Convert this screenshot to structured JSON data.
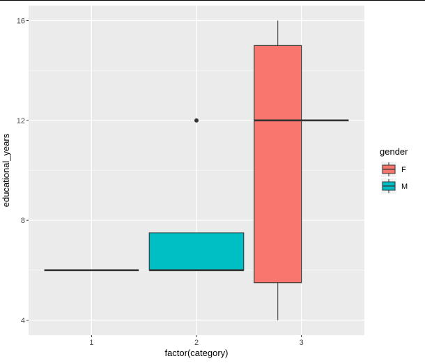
{
  "chart_data": {
    "type": "boxplot",
    "xlabel": "factor(category)",
    "ylabel": "educational_years",
    "categories": [
      "1",
      "2",
      "3"
    ],
    "ylim": [
      3.4,
      16.6
    ],
    "yticks": [
      4,
      8,
      12,
      16
    ],
    "grid": true,
    "legend": {
      "title": "gender",
      "placement": "right",
      "entries": [
        {
          "label": "F",
          "color": "#F8766D"
        },
        {
          "label": "M",
          "color": "#00BFC4"
        }
      ]
    },
    "boxes": [
      {
        "category": "1",
        "group": "M",
        "slot": 0,
        "slots": 1,
        "min": 6,
        "q1": 6,
        "median": 6,
        "q3": 6,
        "max": 6,
        "outliers": []
      },
      {
        "category": "2",
        "group": "M",
        "slot": 0,
        "slots": 1,
        "min": 6,
        "q1": 6,
        "median": 6,
        "q3": 7.5,
        "max": 7.5,
        "outliers": [
          12
        ]
      },
      {
        "category": "3",
        "group": "F",
        "slot": 0,
        "slots": 2,
        "min": 4,
        "q1": 5.5,
        "median": 12,
        "q3": 15,
        "max": 16,
        "outliers": []
      },
      {
        "category": "3",
        "group": "M",
        "slot": 1,
        "slots": 2,
        "min": 12,
        "q1": 12,
        "median": 12,
        "q3": 12,
        "max": 12,
        "outliers": []
      }
    ]
  }
}
